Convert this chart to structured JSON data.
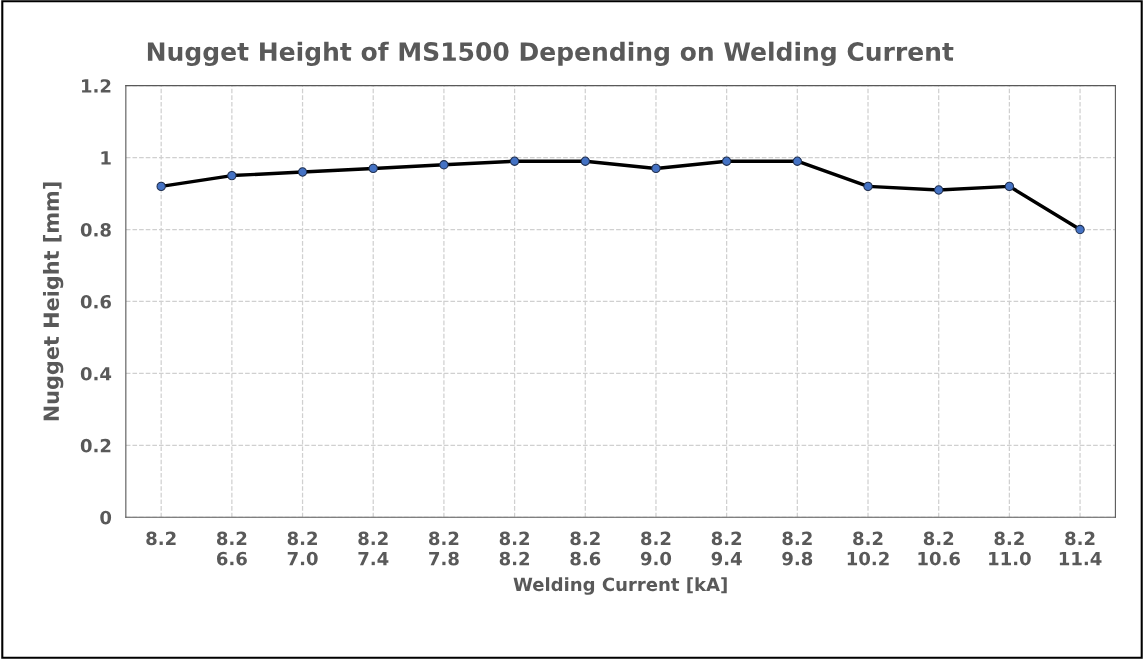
{
  "chart_data": {
    "type": "line",
    "title": "Nugget Height of MS1500 Depending on Welding Current",
    "xlabel": "Welding Current [kA]",
    "ylabel": "Nugget Height [mm]",
    "categories": [
      "8.2",
      "8.2\n6.6",
      "8.2\n7.0",
      "8.2\n7.4",
      "8.2\n7.8",
      "8.2\n8.2",
      "8.2\n8.6",
      "8.2\n9.0",
      "8.2\n9.4",
      "8.2\n9.8",
      "8.2\n10.2",
      "8.2\n10.6",
      "8.2\n11.0",
      "8.2\n11.4"
    ],
    "series": [
      {
        "color": "#000000",
        "values": [
          0.92,
          0.95,
          0.96,
          0.97,
          0.98,
          0.99,
          0.99,
          0.97,
          0.99,
          0.99,
          0.92,
          0.91,
          0.92,
          0.8
        ]
      }
    ],
    "ylim": [
      0,
      1.2
    ],
    "yticks": [
      0,
      0.2,
      0.4,
      0.6,
      0.8,
      1,
      1.2
    ],
    "grid": true,
    "marker": "circle",
    "line_style": "solid"
  }
}
